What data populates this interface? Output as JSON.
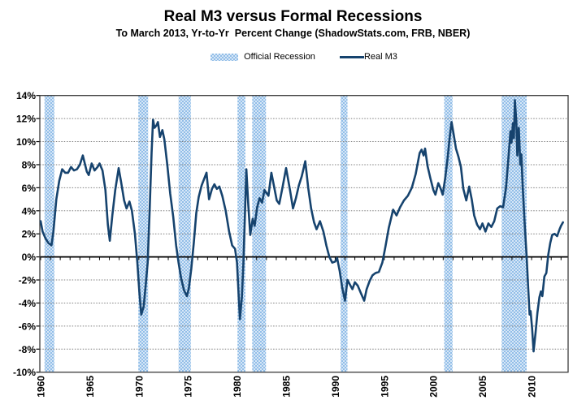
{
  "header": {
    "title": "Real M3 versus Formal Recessions",
    "subtitle": "To March 2013, Yr-to-Yr  Percent Change (ShadowStats.com, FRB, NBER)"
  },
  "legend": {
    "recession_label": "Official Recession",
    "line_label": "Real M3"
  },
  "colors": {
    "line": "#16436E",
    "band_dark": "#92BEE8",
    "band_light": "#D7E7F7",
    "grid": "#7F7F7F",
    "axis_frame": "#3A3A3A",
    "zero_line": "#000000",
    "background": "#FFFFFF"
  },
  "chart_data": {
    "type": "line",
    "title": "Real M3 versus Formal Recessions",
    "subtitle": "To March 2013, Yr-to-Yr Percent Change (ShadowStats.com, FRB, NBER)",
    "xlabel": "",
    "ylabel": "Yr-to-Yr Percent Change",
    "grid": "horizontal-dotted",
    "legend_position": "top-center",
    "x_axis": {
      "ticks": [
        1960,
        1965,
        1970,
        1975,
        1980,
        1985,
        1990,
        1995,
        2000,
        2005,
        2010
      ],
      "tick_labels": [
        "1960",
        "1965",
        "1970",
        "1975",
        "1980",
        "1985",
        "1990",
        "1995",
        "2000",
        "2005",
        "2010"
      ],
      "range": [
        1959.92,
        2013.72
      ],
      "minor_tick_every_years": 1
    },
    "y_axis": {
      "tick_values": [
        14,
        12,
        10,
        8,
        6,
        4,
        2,
        0,
        -2,
        -4,
        -6,
        -8,
        -10
      ],
      "tick_labels": [
        "14%",
        "12%",
        "10%",
        "8%",
        "6%",
        "4%",
        "2%",
        "0%",
        "-2%",
        "-4%",
        "-6%",
        "-8%",
        "-10%"
      ],
      "range": [
        -10,
        14
      ]
    },
    "recessions": [
      [
        1960.4,
        1961.4
      ],
      [
        1969.95,
        1970.95
      ],
      [
        1974.05,
        1975.3
      ],
      [
        1980.05,
        1980.85
      ],
      [
        1981.55,
        1982.95
      ],
      [
        1990.55,
        1991.25
      ],
      [
        2001.1,
        2001.95
      ],
      [
        2006.95,
        2009.5
      ]
    ],
    "series": [
      {
        "name": "Real M3",
        "points": [
          [
            1960.0,
            3.1
          ],
          [
            1960.2,
            2.2
          ],
          [
            1960.5,
            1.6
          ],
          [
            1960.8,
            1.2
          ],
          [
            1961.1,
            1.0
          ],
          [
            1961.3,
            2.2
          ],
          [
            1961.6,
            5.0
          ],
          [
            1961.9,
            6.6
          ],
          [
            1962.2,
            7.6
          ],
          [
            1962.5,
            7.3
          ],
          [
            1962.8,
            7.3
          ],
          [
            1963.1,
            7.8
          ],
          [
            1963.4,
            7.5
          ],
          [
            1963.7,
            7.6
          ],
          [
            1964.0,
            8.0
          ],
          [
            1964.3,
            8.8
          ],
          [
            1964.7,
            7.4
          ],
          [
            1964.9,
            7.1
          ],
          [
            1965.2,
            8.1
          ],
          [
            1965.5,
            7.5
          ],
          [
            1965.8,
            7.8
          ],
          [
            1966.0,
            8.1
          ],
          [
            1966.3,
            7.5
          ],
          [
            1966.6,
            5.8
          ],
          [
            1966.85,
            2.8
          ],
          [
            1967.05,
            1.4
          ],
          [
            1967.3,
            3.6
          ],
          [
            1967.6,
            5.8
          ],
          [
            1967.95,
            7.7
          ],
          [
            1968.2,
            6.5
          ],
          [
            1968.5,
            4.9
          ],
          [
            1968.75,
            4.2
          ],
          [
            1969.05,
            4.8
          ],
          [
            1969.3,
            4.0
          ],
          [
            1969.6,
            2.0
          ],
          [
            1969.85,
            -0.5
          ],
          [
            1970.05,
            -3.0
          ],
          [
            1970.25,
            -5.0
          ],
          [
            1970.5,
            -4.3
          ],
          [
            1970.7,
            -2.5
          ],
          [
            1970.9,
            -0.5
          ],
          [
            1971.1,
            4.0
          ],
          [
            1971.3,
            9.0
          ],
          [
            1971.45,
            11.9
          ],
          [
            1971.6,
            11.2
          ],
          [
            1971.8,
            11.4
          ],
          [
            1971.95,
            11.7
          ],
          [
            1972.15,
            10.4
          ],
          [
            1972.4,
            11.0
          ],
          [
            1972.6,
            10.2
          ],
          [
            1972.9,
            8.0
          ],
          [
            1973.2,
            5.5
          ],
          [
            1973.5,
            3.5
          ],
          [
            1973.8,
            1.0
          ],
          [
            1974.05,
            -0.5
          ],
          [
            1974.3,
            -1.8
          ],
          [
            1974.6,
            -2.9
          ],
          [
            1974.9,
            -3.4
          ],
          [
            1975.1,
            -2.7
          ],
          [
            1975.35,
            -1.0
          ],
          [
            1975.6,
            1.2
          ],
          [
            1975.85,
            3.8
          ],
          [
            1976.1,
            5.2
          ],
          [
            1976.4,
            6.2
          ],
          [
            1976.9,
            7.3
          ],
          [
            1977.15,
            5.0
          ],
          [
            1977.45,
            5.9
          ],
          [
            1977.7,
            6.3
          ],
          [
            1977.95,
            5.9
          ],
          [
            1978.2,
            6.1
          ],
          [
            1978.5,
            5.3
          ],
          [
            1978.85,
            4.0
          ],
          [
            1979.2,
            2.2
          ],
          [
            1979.5,
            1.0
          ],
          [
            1979.8,
            0.7
          ],
          [
            1980.0,
            -0.5
          ],
          [
            1980.15,
            -3.0
          ],
          [
            1980.3,
            -5.4
          ],
          [
            1980.5,
            -3.5
          ],
          [
            1980.65,
            -0.5
          ],
          [
            1980.8,
            3.5
          ],
          [
            1980.95,
            7.6
          ],
          [
            1981.15,
            4.5
          ],
          [
            1981.35,
            1.9
          ],
          [
            1981.6,
            3.3
          ],
          [
            1981.8,
            2.7
          ],
          [
            1982.05,
            4.3
          ],
          [
            1982.3,
            5.1
          ],
          [
            1982.55,
            4.7
          ],
          [
            1982.8,
            5.8
          ],
          [
            1983.2,
            5.3
          ],
          [
            1983.5,
            7.3
          ],
          [
            1983.8,
            6.0
          ],
          [
            1984.05,
            4.9
          ],
          [
            1984.3,
            4.6
          ],
          [
            1984.65,
            6.1
          ],
          [
            1985.0,
            7.7
          ],
          [
            1985.4,
            5.8
          ],
          [
            1985.7,
            4.2
          ],
          [
            1986.0,
            5.1
          ],
          [
            1986.3,
            6.2
          ],
          [
            1986.6,
            7.0
          ],
          [
            1986.95,
            8.3
          ],
          [
            1987.25,
            6.0
          ],
          [
            1987.55,
            4.2
          ],
          [
            1987.85,
            3.0
          ],
          [
            1988.1,
            2.4
          ],
          [
            1988.45,
            3.1
          ],
          [
            1988.8,
            2.2
          ],
          [
            1989.1,
            1.0
          ],
          [
            1989.4,
            0.0
          ],
          [
            1989.7,
            -0.5
          ],
          [
            1990.0,
            -0.4
          ],
          [
            1990.2,
            -0.1
          ],
          [
            1990.45,
            -1.2
          ],
          [
            1990.7,
            -2.6
          ],
          [
            1991.0,
            -3.8
          ],
          [
            1991.25,
            -2.0
          ],
          [
            1991.5,
            -2.4
          ],
          [
            1991.75,
            -2.8
          ],
          [
            1992.0,
            -2.2
          ],
          [
            1992.3,
            -2.5
          ],
          [
            1992.6,
            -3.1
          ],
          [
            1992.95,
            -3.8
          ],
          [
            1993.2,
            -2.8
          ],
          [
            1993.5,
            -2.1
          ],
          [
            1993.8,
            -1.6
          ],
          [
            1994.1,
            -1.4
          ],
          [
            1994.45,
            -1.3
          ],
          [
            1994.8,
            -0.5
          ],
          [
            1995.1,
            0.8
          ],
          [
            1995.45,
            2.5
          ],
          [
            1995.9,
            4.1
          ],
          [
            1996.25,
            3.6
          ],
          [
            1996.6,
            4.3
          ],
          [
            1997.0,
            4.9
          ],
          [
            1997.4,
            5.3
          ],
          [
            1997.8,
            6.0
          ],
          [
            1998.2,
            7.2
          ],
          [
            1998.6,
            9.0
          ],
          [
            1998.8,
            9.3
          ],
          [
            1999.0,
            8.8
          ],
          [
            1999.15,
            9.4
          ],
          [
            1999.4,
            7.9
          ],
          [
            1999.7,
            6.8
          ],
          [
            2000.0,
            5.8
          ],
          [
            2000.2,
            5.4
          ],
          [
            2000.5,
            6.4
          ],
          [
            2000.75,
            5.9
          ],
          [
            2000.95,
            5.4
          ],
          [
            2001.2,
            6.8
          ],
          [
            2001.45,
            8.6
          ],
          [
            2001.65,
            10.3
          ],
          [
            2001.85,
            11.7
          ],
          [
            2002.05,
            10.7
          ],
          [
            2002.3,
            9.4
          ],
          [
            2002.55,
            8.7
          ],
          [
            2002.8,
            7.8
          ],
          [
            2003.05,
            5.9
          ],
          [
            2003.35,
            4.9
          ],
          [
            2003.65,
            6.1
          ],
          [
            2003.9,
            5.0
          ],
          [
            2004.15,
            3.6
          ],
          [
            2004.45,
            2.8
          ],
          [
            2004.75,
            2.4
          ],
          [
            2005.0,
            2.9
          ],
          [
            2005.3,
            2.2
          ],
          [
            2005.6,
            2.9
          ],
          [
            2005.9,
            2.6
          ],
          [
            2006.2,
            3.1
          ],
          [
            2006.5,
            4.2
          ],
          [
            2006.8,
            4.4
          ],
          [
            2007.1,
            4.3
          ],
          [
            2007.4,
            6.0
          ],
          [
            2007.65,
            8.7
          ],
          [
            2007.85,
            10.9
          ],
          [
            2007.95,
            9.9
          ],
          [
            2008.1,
            11.6
          ],
          [
            2008.2,
            10.3
          ],
          [
            2008.3,
            13.6
          ],
          [
            2008.45,
            11.7
          ],
          [
            2008.55,
            8.8
          ],
          [
            2008.7,
            11.2
          ],
          [
            2008.85,
            8.0
          ],
          [
            2008.95,
            8.9
          ],
          [
            2009.1,
            6.0
          ],
          [
            2009.3,
            2.8
          ],
          [
            2009.5,
            0.0
          ],
          [
            2009.65,
            -2.6
          ],
          [
            2009.8,
            -5.0
          ],
          [
            2009.9,
            -4.7
          ],
          [
            2010.05,
            -6.2
          ],
          [
            2010.2,
            -8.2
          ],
          [
            2010.4,
            -6.6
          ],
          [
            2010.6,
            -4.8
          ],
          [
            2010.8,
            -3.5
          ],
          [
            2010.95,
            -3.0
          ],
          [
            2011.1,
            -3.4
          ],
          [
            2011.3,
            -1.7
          ],
          [
            2011.5,
            -1.4
          ],
          [
            2011.7,
            0.2
          ],
          [
            2011.9,
            1.2
          ],
          [
            2012.1,
            1.9
          ],
          [
            2012.35,
            2.0
          ],
          [
            2012.6,
            1.8
          ],
          [
            2012.85,
            2.4
          ],
          [
            2013.0,
            2.7
          ],
          [
            2013.2,
            3.0
          ]
        ]
      }
    ]
  }
}
